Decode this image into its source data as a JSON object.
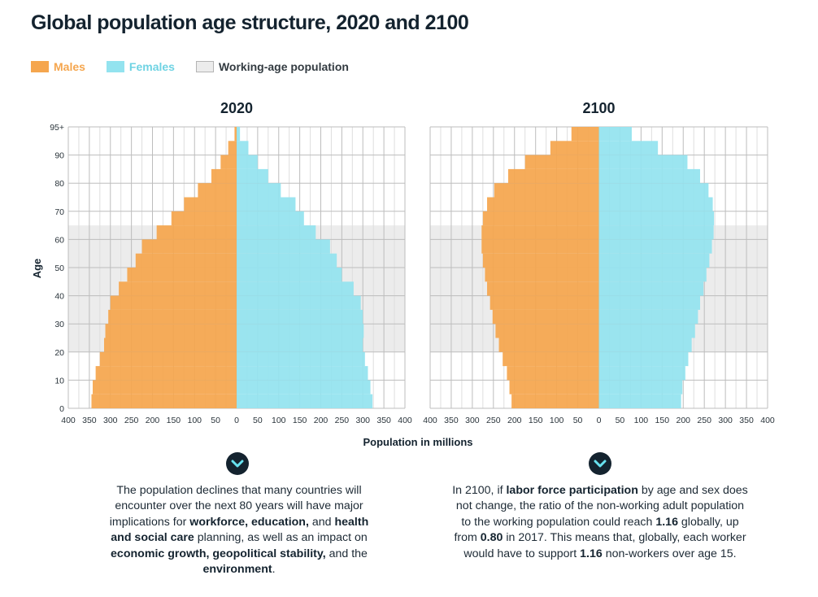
{
  "title": "Global population age structure, 2020 and 2100",
  "legend": {
    "males": "Males",
    "females": "Females",
    "working_age": "Working-age population"
  },
  "colors": {
    "males": "#f5a64e",
    "females": "#93e3ef",
    "working_band": "#ececec",
    "grid": "#c8c8c8",
    "text_dark": "#14232f"
  },
  "icons": [
    "chevron-down-icon",
    "chevron-down-icon"
  ],
  "chart_data": [
    {
      "type": "bar",
      "orientation": "horizontal",
      "subtype": "population-pyramid",
      "title": "2020",
      "xlabel": "Population in millions",
      "ylabel": "Age",
      "xlim": [
        -400,
        400
      ],
      "ylim": [
        0,
        100
      ],
      "x_tick_labels": [
        "400",
        "350",
        "300",
        "250",
        "200",
        "150",
        "100",
        "50",
        "0",
        "50",
        "100",
        "150",
        "200",
        "250",
        "300",
        "350",
        "400"
      ],
      "y_tick_labels": [
        "0",
        "10",
        "20",
        "30",
        "40",
        "50",
        "60",
        "70",
        "80",
        "90",
        "95+"
      ],
      "working_age_band": [
        20,
        65
      ],
      "age_start": [
        0,
        5,
        10,
        15,
        20,
        25,
        30,
        35,
        40,
        45,
        50,
        55,
        60,
        65,
        70,
        75,
        80,
        85,
        90,
        95
      ],
      "series": [
        {
          "name": "Males",
          "values": [
            345,
            342,
            335,
            325,
            315,
            312,
            305,
            300,
            280,
            260,
            240,
            225,
            190,
            155,
            125,
            92,
            60,
            38,
            20,
            5
          ]
        },
        {
          "name": "Females",
          "values": [
            323,
            318,
            312,
            305,
            300,
            302,
            300,
            295,
            278,
            250,
            238,
            222,
            188,
            160,
            140,
            105,
            75,
            50,
            28,
            8
          ]
        }
      ]
    },
    {
      "type": "bar",
      "orientation": "horizontal",
      "subtype": "population-pyramid",
      "title": "2100",
      "xlabel": "Population in millions",
      "ylabel": "Age",
      "xlim": [
        -400,
        400
      ],
      "ylim": [
        0,
        100
      ],
      "x_tick_labels": [
        "400",
        "350",
        "300",
        "250",
        "200",
        "150",
        "100",
        "50",
        "0",
        "50",
        "100",
        "150",
        "200",
        "250",
        "300",
        "350",
        "400"
      ],
      "working_age_band": [
        20,
        65
      ],
      "age_start": [
        0,
        5,
        10,
        15,
        20,
        25,
        30,
        35,
        40,
        45,
        50,
        55,
        60,
        65,
        70,
        75,
        80,
        85,
        90,
        95
      ],
      "series": [
        {
          "name": "Males",
          "values": [
            207,
            212,
            218,
            228,
            237,
            245,
            252,
            258,
            265,
            270,
            275,
            278,
            278,
            275,
            265,
            248,
            215,
            175,
            115,
            65
          ]
        },
        {
          "name": "Females",
          "values": [
            195,
            198,
            205,
            212,
            220,
            228,
            235,
            240,
            248,
            255,
            262,
            268,
            272,
            273,
            270,
            260,
            240,
            210,
            140,
            78
          ]
        }
      ]
    }
  ],
  "notes": {
    "left": [
      {
        "t": "The population declines that many countries will encounter over the next 80 years will have major implications for "
      },
      {
        "t": "workforce, education,",
        "b": true
      },
      {
        "t": " and "
      },
      {
        "t": "health and social care",
        "b": true
      },
      {
        "t": " planning, as well as an impact on "
      },
      {
        "t": "economic growth, geopolitical stability,",
        "b": true
      },
      {
        "t": " and the "
      },
      {
        "t": "environment",
        "b": true
      },
      {
        "t": "."
      }
    ],
    "right": [
      {
        "t": "In 2100, if "
      },
      {
        "t": "labor force participation",
        "b": true
      },
      {
        "t": " by age and sex does not change, the ratio of the non-working adult population to the working population could reach "
      },
      {
        "t": "1.16",
        "b": true
      },
      {
        "t": " globally, up from "
      },
      {
        "t": "0.80",
        "b": true
      },
      {
        "t": " in 2017. This means that, globally, each worker would have to support "
      },
      {
        "t": "1.16",
        "b": true
      },
      {
        "t": " non-workers over age 15."
      }
    ]
  }
}
